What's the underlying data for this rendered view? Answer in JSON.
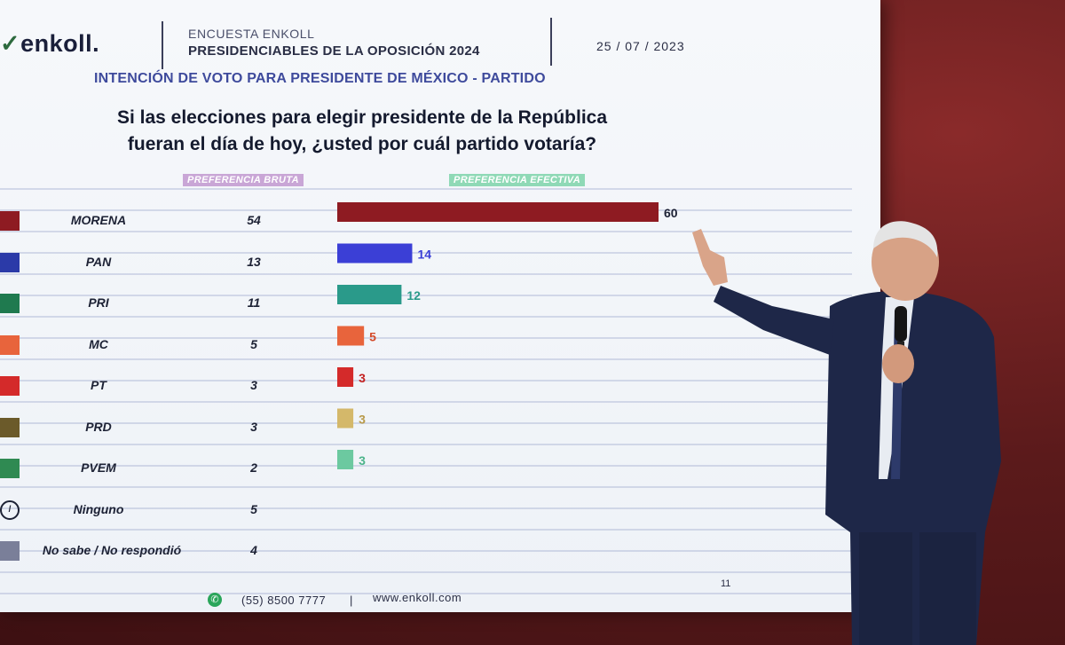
{
  "header": {
    "logo": "enkoll.",
    "kicker": "ENCUESTA ENKOLL",
    "title": "PRESIDENCIABLES DE LA OPOSICIÓN 2024",
    "date": "25 / 07 / 2023"
  },
  "subtitle": "INTENCIÓN DE VOTO PARA PRESIDENTE DE MÉXICO - PARTIDO",
  "question_line1": "Si las elecciones para elegir presidente de la República",
  "question_line2": "fueran el día de hoy, ¿usted por cuál partido votaría?",
  "legend": {
    "bruta": "PREFERENCIA BRUTA",
    "efectiva": "PREFERENCIA EFECTIVA",
    "bruta_color": "#c9a6d6",
    "efectiva_color": "#8fd9b6"
  },
  "footer": {
    "phone": "(55) 8500 7777",
    "separator": "|",
    "web": "www.enkoll.com",
    "page": "11"
  },
  "chart_data": {
    "type": "bar",
    "orientation": "horizontal",
    "categories": [
      "MORENA",
      "PAN",
      "PRI",
      "MC",
      "PT",
      "PRD",
      "PVEM",
      "Ninguno",
      "No sabe / No respondió"
    ],
    "series": [
      {
        "name": "PREFERENCIA BRUTA",
        "values": [
          54,
          13,
          11,
          5,
          3,
          3,
          2,
          5,
          4
        ]
      },
      {
        "name": "PREFERENCIA EFECTIVA",
        "values": [
          60,
          14,
          12,
          5,
          3,
          3,
          3,
          null,
          null
        ]
      }
    ],
    "bar_colors": [
      "#8e1b22",
      "#3b3fd6",
      "#2a9a8a",
      "#e8643c",
      "#d42a2a",
      "#d4b86a",
      "#6cc9a0",
      null,
      null
    ],
    "label_colors": [
      "#1d2235",
      "#3b3fd6",
      "#2a9a8a",
      "#d44a2a",
      "#c42020",
      "#b89a4a",
      "#4bb48a",
      null,
      null
    ],
    "icon_names": [
      "morena-logo-icon",
      "pan-logo-icon",
      "pri-logo-icon",
      "mc-logo-icon",
      "pt-logo-icon",
      "prd-logo-icon",
      "pvem-logo-icon",
      "no-symbol-icon",
      "person-question-icon"
    ],
    "xlim": [
      0,
      60
    ]
  }
}
